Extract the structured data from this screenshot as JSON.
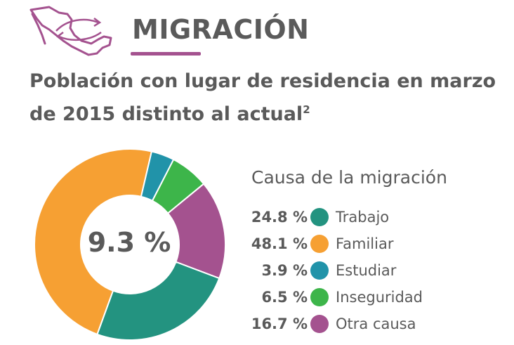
{
  "header": {
    "section_title": "MIGRACIÓN",
    "map_icon": "mexico-map-arrows-icon",
    "accent_color": "#a4528f"
  },
  "subtitle": {
    "line1": "Población con lugar de residencia en marzo",
    "line2": "de 2015 distinto al actual",
    "footnote": "2"
  },
  "chart_data": {
    "type": "pie",
    "center_label": "9.3 %",
    "legend_title": "Causa de la migración",
    "legend_placement": "right",
    "slices": [
      {
        "label": "Trabajo",
        "value": 24.8,
        "value_label": "24.8 %",
        "color": "#239380"
      },
      {
        "label": "Familiar",
        "value": 48.1,
        "value_label": "48.1 %",
        "color": "#f6a033"
      },
      {
        "label": "Estudiar",
        "value": 3.9,
        "value_label": "3.9 %",
        "color": "#2193a9"
      },
      {
        "label": "Inseguridad",
        "value": 6.5,
        "value_label": "6.5 %",
        "color": "#3db54a"
      },
      {
        "label": "Otra causa",
        "value": 16.7,
        "value_label": "16.7 %",
        "color": "#a4528f"
      }
    ]
  }
}
